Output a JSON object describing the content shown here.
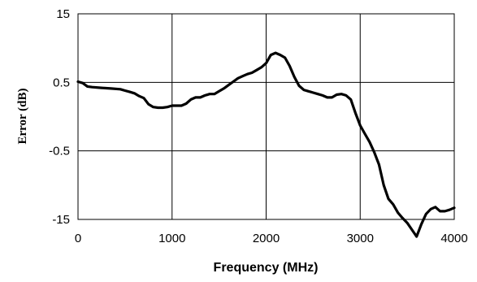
{
  "chart_data": {
    "type": "line",
    "xlabel": "Frequency (MHz)",
    "ylabel": "Error (dB)",
    "x_ticks": [
      0,
      1000,
      2000,
      3000,
      4000
    ],
    "x_tick_labels": [
      "0",
      "1000",
      "2000",
      "3000",
      "4000"
    ],
    "y_ticks": [
      15,
      0.5,
      -0.5,
      -15
    ],
    "y_tick_labels": [
      "15",
      "0.5",
      "-0.5",
      "-15"
    ],
    "xlim": [
      0,
      4000
    ],
    "grid": true,
    "legend": "none",
    "series": [
      {
        "color": "#000000",
        "x": [
          0,
          50,
          100,
          150,
          250,
          350,
          450,
          500,
          550,
          600,
          650,
          700,
          750,
          800,
          850,
          900,
          950,
          1000,
          1050,
          1100,
          1150,
          1200,
          1250,
          1300,
          1350,
          1400,
          1450,
          1500,
          1550,
          1600,
          1650,
          1700,
          1750,
          1800,
          1850,
          1900,
          1950,
          2000,
          2050,
          2100,
          2150,
          2200,
          2250,
          2300,
          2350,
          2400,
          2450,
          2500,
          2550,
          2600,
          2650,
          2700,
          2750,
          2800,
          2850,
          2900,
          2950,
          3000,
          3050,
          3100,
          3150,
          3200,
          3250,
          3300,
          3350,
          3400,
          3450,
          3500,
          3550,
          3600,
          3650,
          3700,
          3750,
          3800,
          3850,
          3900,
          3950,
          4000
        ],
        "y": [
          0.51,
          0.49,
          0.44,
          0.43,
          0.42,
          0.41,
          0.4,
          0.38,
          0.36,
          0.34,
          0.3,
          0.27,
          0.18,
          0.14,
          0.13,
          0.13,
          0.14,
          0.16,
          0.16,
          0.16,
          0.19,
          0.25,
          0.28,
          0.28,
          0.31,
          0.33,
          0.33,
          0.37,
          0.41,
          0.46,
          0.51,
          0.56,
          0.59,
          0.62,
          0.64,
          0.68,
          0.72,
          0.78,
          0.9,
          0.93,
          0.9,
          0.86,
          0.74,
          0.58,
          0.45,
          0.39,
          0.37,
          0.35,
          0.33,
          0.31,
          0.28,
          0.28,
          0.32,
          0.33,
          0.31,
          0.25,
          0.05,
          -0.13,
          -0.25,
          -0.37,
          -0.52,
          -0.7,
          -1.0,
          -1.2,
          -1.28,
          -1.4,
          -1.48,
          -1.55,
          -1.65,
          -1.75,
          -1.57,
          -1.42,
          -1.35,
          -1.32,
          -1.38,
          -1.38,
          -1.36,
          -1.33
        ]
      }
    ]
  }
}
